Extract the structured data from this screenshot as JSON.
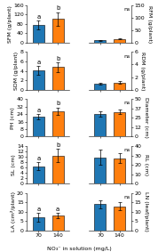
{
  "xlabel": "NO₃⁻ in solution (mg/L)",
  "chart_data": [
    {
      "type": "bar",
      "categories": [
        "70",
        "140"
      ],
      "values": [
        75,
        100
      ],
      "errors": [
        20,
        30
      ],
      "ylabel": "SFM (g/plant)",
      "ylim": [
        0,
        160
      ],
      "yticks": [
        0,
        40,
        80,
        120,
        160
      ],
      "tick_labels": "y",
      "annotations": [
        {
          "text": "a",
          "category": "70"
        },
        {
          "text": "b",
          "category": "140"
        }
      ]
    },
    {
      "type": "bar",
      "categories": [
        "70",
        "140"
      ],
      "values": [
        9,
        15
      ],
      "errors": [
        2,
        3
      ],
      "ylabel": "RFM (g/plant)",
      "ylim": [
        0,
        150
      ],
      "yticks": [
        0,
        50,
        100,
        150
      ],
      "tick_labels": "y",
      "annotations": [
        {
          "text": "ns"
        }
      ]
    },
    {
      "type": "bar",
      "categories": [
        "70",
        "140"
      ],
      "values": [
        4.1,
        4.8
      ],
      "errors": [
        0.9,
        1.0
      ],
      "ylabel": "SDM (g/plant)",
      "ylim": [
        0,
        8
      ],
      "yticks": [
        0,
        2,
        4,
        6,
        8
      ],
      "tick_labels": "y",
      "annotations": [
        {
          "text": "a",
          "category": "70"
        },
        {
          "text": "b",
          "category": "140"
        }
      ]
    },
    {
      "type": "bar",
      "categories": [
        "70",
        "140"
      ],
      "values": [
        0.9,
        1.1
      ],
      "errors": [
        0.15,
        0.2
      ],
      "ylabel": "RDM (g/plant)",
      "ylim": [
        0,
        6
      ],
      "yticks": [
        0,
        2,
        4,
        6
      ],
      "tick_labels": "y",
      "annotations": [
        {
          "text": "ns"
        }
      ]
    },
    {
      "type": "bar",
      "categories": [
        "70",
        "140"
      ],
      "values": [
        21,
        27
      ],
      "errors": [
        3,
        4
      ],
      "ylabel": "PH (cm)",
      "ylim": [
        0,
        40
      ],
      "yticks": [
        0,
        8,
        16,
        24,
        32,
        40
      ],
      "tick_labels": "y",
      "annotations": [
        {
          "text": "a",
          "category": "70"
        },
        {
          "text": "b",
          "category": "140"
        }
      ]
    },
    {
      "type": "bar",
      "categories": [
        "70",
        "140"
      ],
      "values": [
        30,
        33
      ],
      "errors": [
        4,
        3
      ],
      "ylabel": "Diameter (cm)",
      "ylim": [
        0,
        50
      ],
      "yticks": [
        0,
        12,
        25,
        37,
        50
      ],
      "tick_labels": "y",
      "annotations": [
        {
          "text": "ns"
        }
      ]
    },
    {
      "type": "bar",
      "categories": [
        "70",
        "140"
      ],
      "values": [
        6.5,
        10.5
      ],
      "errors": [
        1.5,
        2.5
      ],
      "ylabel": "SL (cm)",
      "ylim": [
        0,
        14
      ],
      "yticks": [
        0,
        2,
        4,
        6,
        8,
        10,
        12,
        14
      ],
      "tick_labels": "y",
      "annotations": [
        {
          "text": "a",
          "category": "70"
        },
        {
          "text": "b",
          "category": "140"
        }
      ]
    },
    {
      "type": "bar",
      "categories": [
        "70",
        "140"
      ],
      "values": [
        28,
        27
      ],
      "errors": [
        8,
        5
      ],
      "ylabel": "RL (cm)",
      "ylim": [
        0,
        40
      ],
      "yticks": [
        0,
        10,
        20,
        30,
        40
      ],
      "tick_labels": "y",
      "annotations": [
        {
          "text": "ns"
        }
      ]
    },
    {
      "type": "bar",
      "categories": [
        "70",
        "140"
      ],
      "values": [
        7,
        8
      ],
      "errors": [
        2.5,
        1.5
      ],
      "ylabel": "LA (cm²/plant)",
      "ylim": [
        0,
        20
      ],
      "yticks": [
        0,
        5,
        10,
        15,
        20
      ],
      "annotations": [
        {
          "text": "a",
          "category": "70"
        },
        {
          "text": "a",
          "category": "140"
        }
      ]
    },
    {
      "type": "bar",
      "categories": [
        "70",
        "140"
      ],
      "values": [
        14,
        13
      ],
      "errors": [
        2,
        2
      ],
      "ylabel": "LN (leaf/plant)",
      "ylim": [
        0,
        20
      ],
      "yticks": [
        0,
        5,
        10,
        15,
        20
      ],
      "annotations": [
        {
          "text": "ns"
        }
      ]
    }
  ]
}
